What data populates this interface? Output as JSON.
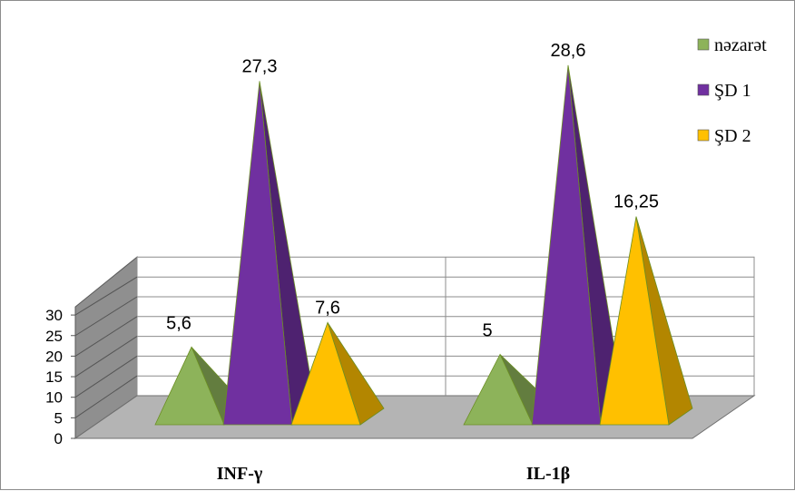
{
  "chart_data": {
    "type": "bar",
    "style": "3d-pyramid",
    "categories": [
      "INF-γ",
      "IL-1β"
    ],
    "series": [
      {
        "name": "nəzarət",
        "values": [
          5.6,
          5
        ],
        "color": "#8db35a"
      },
      {
        "name": "ŞD 1",
        "values": [
          27.3,
          28.6
        ],
        "color": "#7030a0"
      },
      {
        "name": "ŞD 2",
        "values": [
          7.6,
          16.25
        ],
        "color": "#ffc000"
      }
    ],
    "data_labels": [
      [
        "5,6",
        "5"
      ],
      [
        "27,3",
        "28,6"
      ],
      [
        "7,6",
        "16,25"
      ]
    ],
    "y_ticks": [
      "0",
      "5",
      "10",
      "15",
      "20",
      "25",
      "30"
    ],
    "ylim": [
      0,
      30
    ],
    "grid": true,
    "legend_position": "top-right",
    "title": "",
    "xlabel": "",
    "ylabel": ""
  }
}
